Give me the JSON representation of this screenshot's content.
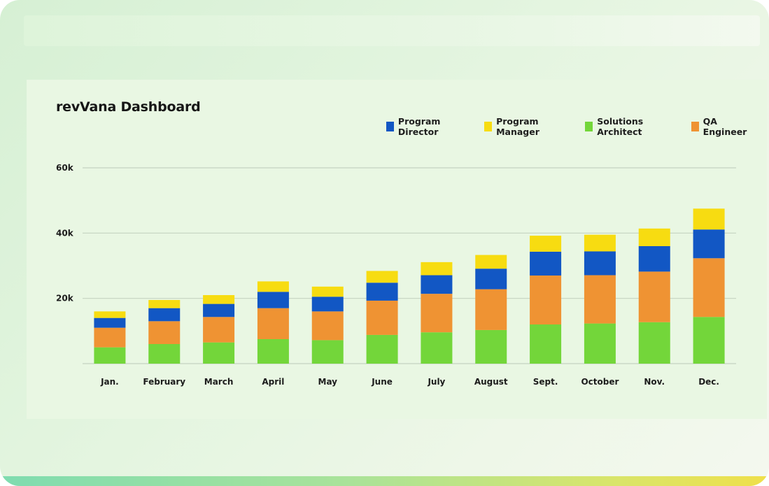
{
  "title": "revVana Dashboard",
  "colors": {
    "program_director": "#1257c4",
    "program_manager": "#f7dc11",
    "solutions_architect": "#73d63a",
    "qa_engineer": "#ef9333",
    "grid": "#c4d3c1"
  },
  "chart_data": {
    "type": "bar",
    "stacked": true,
    "title": "revVana Dashboard",
    "xlabel": "",
    "ylabel": "",
    "ylim": [
      0,
      60000
    ],
    "y_ticks": [
      {
        "value": 20000,
        "label": "20k"
      },
      {
        "value": 40000,
        "label": "40k"
      },
      {
        "value": 60000,
        "label": "60k"
      }
    ],
    "grid": true,
    "legend_position": "top-right",
    "categories": [
      "Jan.",
      "February",
      "March",
      "April",
      "May",
      "June",
      "July",
      "August",
      "Sept.",
      "October",
      "Nov.",
      "Dec."
    ],
    "series": [
      {
        "name": "Solutions Architect",
        "color": "#73d63a",
        "values": [
          5000,
          6000,
          6500,
          7500,
          7200,
          8800,
          9600,
          10300,
          12000,
          12300,
          12700,
          14300
        ]
      },
      {
        "name": "QA Engineer",
        "color": "#ef9333",
        "values": [
          6000,
          7000,
          7800,
          9500,
          8800,
          10500,
          11800,
          12500,
          15000,
          14800,
          15500,
          18000
        ]
      },
      {
        "name": "Program Director",
        "color": "#1257c4",
        "values": [
          3000,
          4000,
          4000,
          5000,
          4500,
          5500,
          5700,
          6300,
          7300,
          7300,
          7800,
          8800
        ]
      },
      {
        "name": "Program Manager",
        "color": "#f7dc11",
        "values": [
          2000,
          2500,
          2700,
          3200,
          3100,
          3600,
          4000,
          4200,
          4900,
          5100,
          5400,
          6400
        ]
      }
    ],
    "legend": [
      {
        "name": "Program Director",
        "color": "#1257c4"
      },
      {
        "name": "Program Manager",
        "color": "#f7dc11"
      },
      {
        "name": "Solutions Architect",
        "color": "#73d63a"
      },
      {
        "name": "QA Engineer",
        "color": "#ef9333"
      }
    ]
  }
}
